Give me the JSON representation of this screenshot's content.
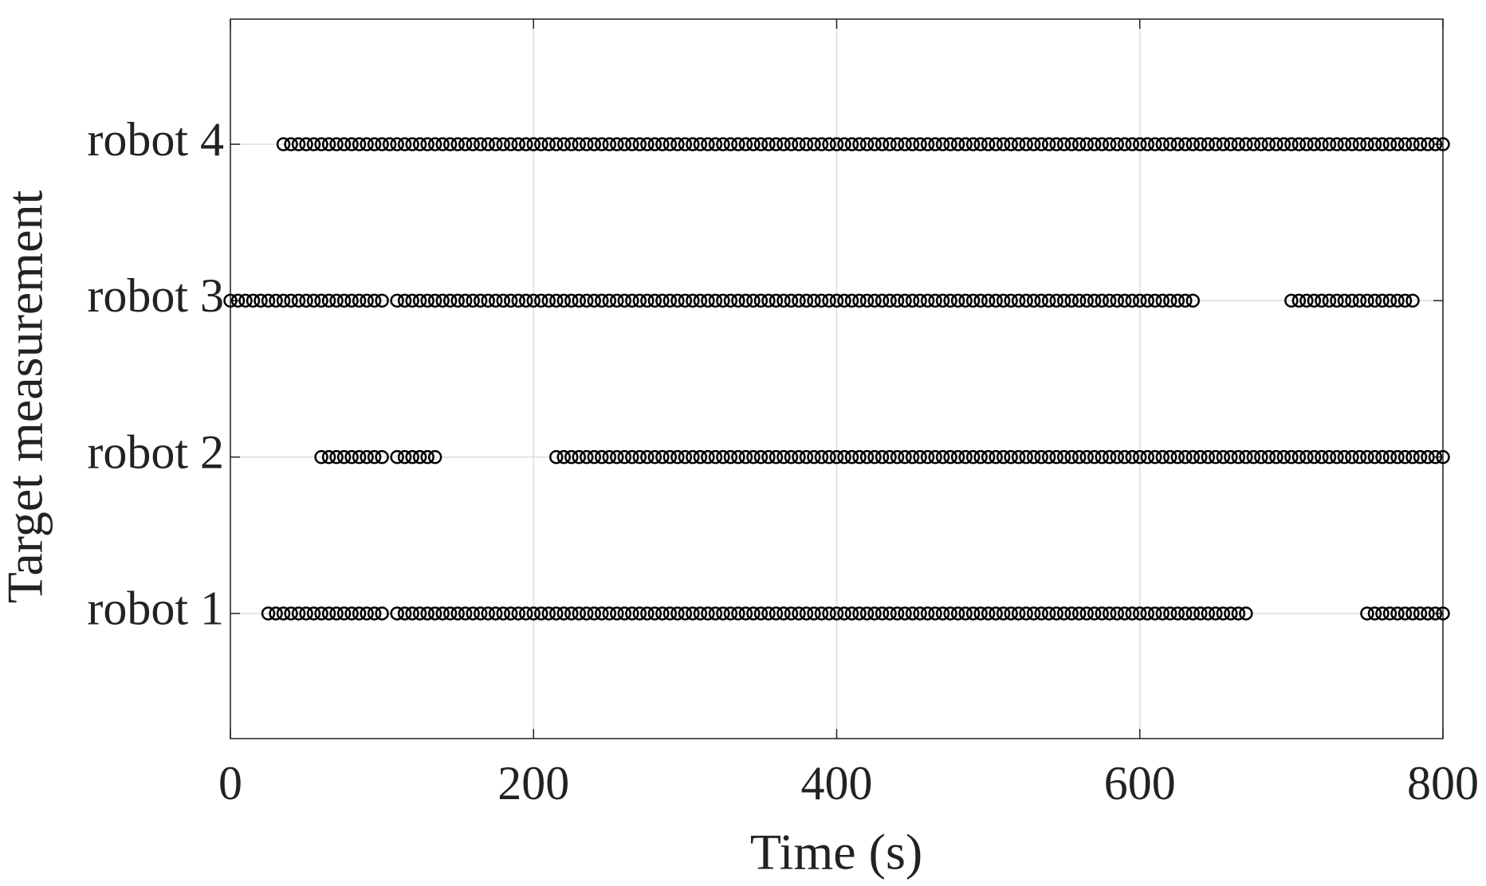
{
  "chart_data": {
    "type": "scatter",
    "xlabel": "Time (s)",
    "ylabel": "Target measurement",
    "xlim": [
      0,
      800
    ],
    "xticks": [
      0,
      200,
      400,
      600,
      800
    ],
    "ylim": [
      0.2,
      4.8
    ],
    "yticks": [
      {
        "value": 1,
        "label": "robot 1"
      },
      {
        "value": 2,
        "label": "robot 2"
      },
      {
        "value": 3,
        "label": "robot 3"
      },
      {
        "value": 4,
        "label": "robot 4"
      }
    ],
    "grid": true,
    "marker": "circle",
    "color": "#000000",
    "series": [
      {
        "y": 1,
        "x": [
          25,
          30,
          35,
          40,
          45,
          50,
          55,
          60,
          65,
          70,
          75,
          80,
          85,
          90,
          95,
          100,
          110,
          115,
          120,
          125,
          130,
          135,
          140,
          145,
          150,
          155,
          160,
          165,
          170,
          175,
          180,
          185,
          190,
          195,
          200,
          205,
          210,
          215,
          220,
          225,
          230,
          235,
          240,
          245,
          250,
          255,
          260,
          265,
          270,
          275,
          280,
          285,
          290,
          295,
          300,
          305,
          310,
          315,
          320,
          325,
          330,
          335,
          340,
          345,
          350,
          355,
          360,
          365,
          370,
          375,
          380,
          385,
          390,
          395,
          400,
          405,
          410,
          415,
          420,
          425,
          430,
          435,
          440,
          445,
          450,
          455,
          460,
          465,
          470,
          475,
          480,
          485,
          490,
          495,
          500,
          505,
          510,
          515,
          520,
          525,
          530,
          535,
          540,
          545,
          550,
          555,
          560,
          565,
          570,
          575,
          580,
          585,
          590,
          595,
          600,
          605,
          610,
          615,
          620,
          625,
          630,
          635,
          640,
          645,
          650,
          655,
          660,
          665,
          670,
          750,
          755,
          760,
          765,
          770,
          775,
          780,
          785,
          790,
          795,
          800
        ]
      },
      {
        "y": 2,
        "x": [
          60,
          65,
          70,
          75,
          80,
          85,
          90,
          95,
          100,
          110,
          115,
          120,
          125,
          130,
          135,
          215,
          220,
          225,
          230,
          235,
          240,
          245,
          250,
          255,
          260,
          265,
          270,
          275,
          280,
          285,
          290,
          295,
          300,
          305,
          310,
          315,
          320,
          325,
          330,
          335,
          340,
          345,
          350,
          355,
          360,
          365,
          370,
          375,
          380,
          385,
          390,
          395,
          400,
          405,
          410,
          415,
          420,
          425,
          430,
          435,
          440,
          445,
          450,
          455,
          460,
          465,
          470,
          475,
          480,
          485,
          490,
          495,
          500,
          505,
          510,
          515,
          520,
          525,
          530,
          535,
          540,
          545,
          550,
          555,
          560,
          565,
          570,
          575,
          580,
          585,
          590,
          595,
          600,
          605,
          610,
          615,
          620,
          625,
          630,
          635,
          640,
          645,
          650,
          655,
          660,
          665,
          670,
          675,
          680,
          685,
          690,
          695,
          700,
          705,
          710,
          715,
          720,
          725,
          730,
          735,
          740,
          745,
          750,
          755,
          760,
          765,
          770,
          775,
          780,
          785,
          790,
          795,
          800
        ]
      },
      {
        "y": 3,
        "x": [
          0,
          5,
          10,
          15,
          20,
          25,
          30,
          35,
          40,
          45,
          50,
          55,
          60,
          65,
          70,
          75,
          80,
          85,
          90,
          95,
          100,
          110,
          115,
          120,
          125,
          130,
          135,
          140,
          145,
          150,
          155,
          160,
          165,
          170,
          175,
          180,
          185,
          190,
          195,
          200,
          205,
          210,
          215,
          220,
          225,
          230,
          235,
          240,
          245,
          250,
          255,
          260,
          265,
          270,
          275,
          280,
          285,
          290,
          295,
          300,
          305,
          310,
          315,
          320,
          325,
          330,
          335,
          340,
          345,
          350,
          355,
          360,
          365,
          370,
          375,
          380,
          385,
          390,
          395,
          400,
          405,
          410,
          415,
          420,
          425,
          430,
          435,
          440,
          445,
          450,
          455,
          460,
          465,
          470,
          475,
          480,
          485,
          490,
          495,
          500,
          505,
          510,
          515,
          520,
          525,
          530,
          535,
          540,
          545,
          550,
          555,
          560,
          565,
          570,
          575,
          580,
          585,
          590,
          595,
          600,
          605,
          610,
          615,
          620,
          625,
          630,
          635,
          700,
          705,
          710,
          715,
          720,
          725,
          730,
          735,
          740,
          745,
          750,
          755,
          760,
          765,
          770,
          775,
          780
        ]
      },
      {
        "y": 4,
        "x": [
          35,
          40,
          45,
          50,
          55,
          60,
          65,
          70,
          75,
          80,
          85,
          90,
          95,
          100,
          105,
          110,
          115,
          120,
          125,
          130,
          135,
          140,
          145,
          150,
          155,
          160,
          165,
          170,
          175,
          180,
          185,
          190,
          195,
          200,
          205,
          210,
          215,
          220,
          225,
          230,
          235,
          240,
          245,
          250,
          255,
          260,
          265,
          270,
          275,
          280,
          285,
          290,
          295,
          300,
          305,
          310,
          315,
          320,
          325,
          330,
          335,
          340,
          345,
          350,
          355,
          360,
          365,
          370,
          375,
          380,
          385,
          390,
          395,
          400,
          405,
          410,
          415,
          420,
          425,
          430,
          435,
          440,
          445,
          450,
          455,
          460,
          465,
          470,
          475,
          480,
          485,
          490,
          495,
          500,
          505,
          510,
          515,
          520,
          525,
          530,
          535,
          540,
          545,
          550,
          555,
          560,
          565,
          570,
          575,
          580,
          585,
          590,
          595,
          600,
          605,
          610,
          615,
          620,
          625,
          630,
          635,
          640,
          645,
          650,
          655,
          660,
          665,
          670,
          675,
          680,
          685,
          690,
          695,
          700,
          705,
          710,
          715,
          720,
          725,
          730,
          735,
          740,
          745,
          750,
          755,
          760,
          765,
          770,
          775,
          780,
          785,
          790,
          795,
          800
        ]
      }
    ]
  }
}
